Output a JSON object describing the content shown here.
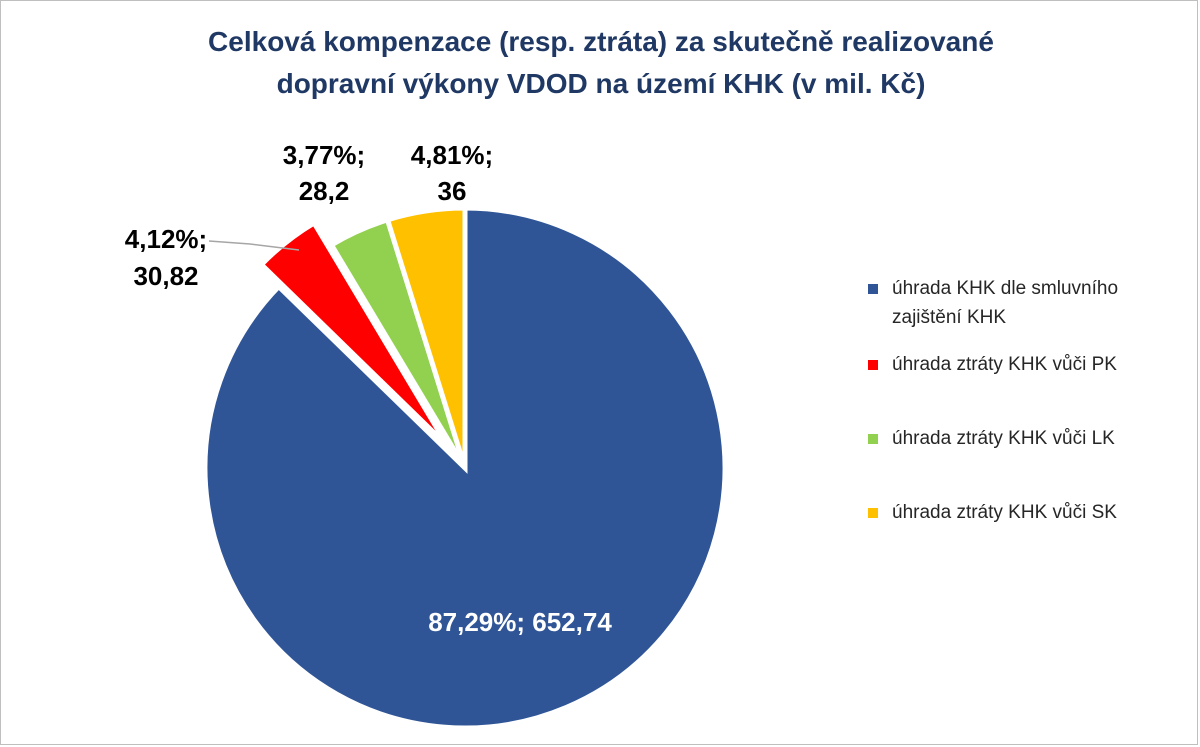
{
  "chart_data": {
    "type": "pie",
    "title_line1": "Celková kompenzace (resp. ztráta) za skutečně realizované",
    "title_line2": "dopravní výkony VDOD na území KHK (v mil. Kč)",
    "categories": [
      "úhrada KHK dle smluvního zajištění KHK",
      "úhrada ztráty KHK vůči PK",
      "úhrada ztráty KHK vůči LK",
      "úhrada ztráty KHK vůči SK"
    ],
    "values": [
      652.74,
      30.82,
      28.2,
      36
    ],
    "percent_labels": [
      "87,29%;",
      "4,12%;",
      "3,77%;",
      "4,81%;"
    ],
    "value_labels": [
      "652,74",
      "30,82",
      "28,2",
      "36"
    ],
    "colors": [
      "#2f5597",
      "#ff0000",
      "#92d050",
      "#ffc000"
    ],
    "legend_position": "right"
  }
}
